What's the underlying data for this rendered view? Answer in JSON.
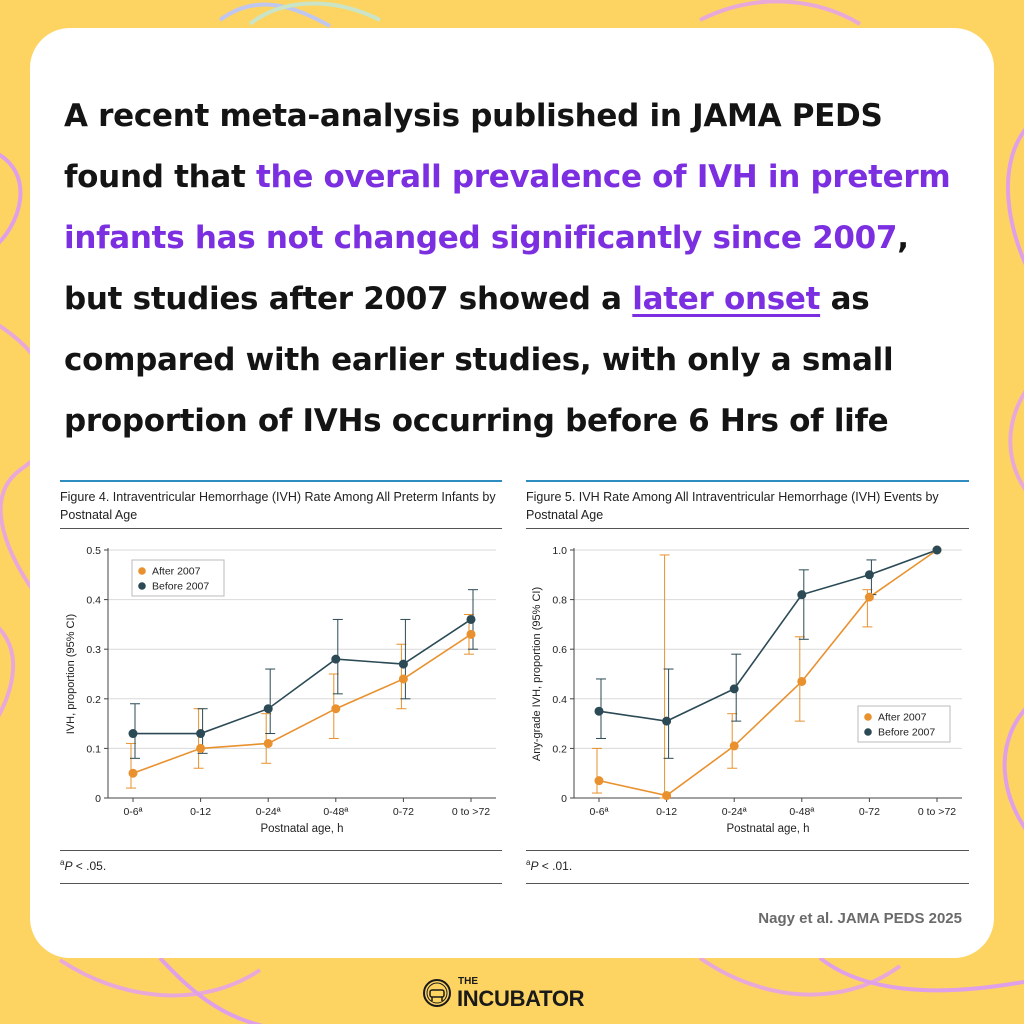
{
  "headline": {
    "part1": "A recent meta-analysis published in JAMA PEDS found that ",
    "highlight": "the overall prevalence of IVH in preterm infants has not changed significantly since 2007",
    "part2": ", but studies after 2007 showed a ",
    "underline": "later onset",
    "part3": " as compared with earlier studies, with only a small proportion of IVHs occurring before 6 Hrs of life"
  },
  "citation": "Nagy et al. JAMA PEDS 2025",
  "logo": {
    "the": "THE",
    "name": "INCUBATOR",
    "icon": "incubator-icon"
  },
  "colors": {
    "background": "#FDD462",
    "accent": "#7B2FE0",
    "after": "#E8912E",
    "before": "#2B4A55",
    "rule": "#2E8CC0"
  },
  "chart_data": [
    {
      "type": "line",
      "title": "Figure 4. Intraventricular Hemorrhage (IVH) Rate Among All Preterm Infants by Postnatal Age",
      "xlabel": "Postnatal age, h",
      "ylabel": "IVH, proportion (95% CI)",
      "categories": [
        "0-6ª",
        "0-12",
        "0-24ª",
        "0-48ª",
        "0-72",
        "0 to >72"
      ],
      "ylim": [
        0,
        0.5
      ],
      "yticks": [
        "0",
        "0.1",
        "0.2",
        "0.3",
        "0.4",
        "0.5"
      ],
      "grid": true,
      "legend_position": "top-left",
      "series": [
        {
          "name": "After 2007",
          "color": "#E8912E",
          "values": [
            0.05,
            0.1,
            0.11,
            0.18,
            0.24,
            0.33
          ],
          "ci_low": [
            0.02,
            0.06,
            0.07,
            0.12,
            0.18,
            0.29
          ],
          "ci_high": [
            0.11,
            0.18,
            0.17,
            0.25,
            0.31,
            0.37
          ]
        },
        {
          "name": "Before 2007",
          "color": "#2B4A55",
          "values": [
            0.13,
            0.13,
            0.18,
            0.28,
            0.27,
            0.36
          ],
          "ci_low": [
            0.08,
            0.09,
            0.13,
            0.21,
            0.2,
            0.3
          ],
          "ci_high": [
            0.19,
            0.18,
            0.26,
            0.36,
            0.36,
            0.42
          ]
        }
      ],
      "footnote": {
        "sup": "a",
        "italic": "P",
        "text": " < .05."
      }
    },
    {
      "type": "line",
      "title": "Figure 5. IVH Rate Among All Intraventricular Hemorrhage (IVH) Events by Postnatal Age",
      "xlabel": "Postnatal age, h",
      "ylabel": "Any-grade IVH, proportion (95% CI)",
      "categories": [
        "0-6ª",
        "0-12",
        "0-24ª",
        "0-48ª",
        "0-72",
        "0 to >72"
      ],
      "ylim": [
        0,
        1.0
      ],
      "yticks": [
        "0",
        "0.2",
        "0.4",
        "0.6",
        "0.8",
        "1.0"
      ],
      "grid": true,
      "legend_position": "bottom-right",
      "series": [
        {
          "name": "After 2007",
          "color": "#E8912E",
          "values": [
            0.07,
            0.01,
            0.21,
            0.47,
            0.81,
            1.0
          ],
          "ci_low": [
            0.02,
            0.0,
            0.12,
            0.31,
            0.69,
            1.0
          ],
          "ci_high": [
            0.2,
            0.98,
            0.34,
            0.65,
            0.84,
            1.0
          ]
        },
        {
          "name": "Before 2007",
          "color": "#2B4A55",
          "values": [
            0.35,
            0.31,
            0.44,
            0.82,
            0.9,
            1.0
          ],
          "ci_low": [
            0.24,
            0.16,
            0.31,
            0.64,
            0.82,
            1.0
          ],
          "ci_high": [
            0.48,
            0.52,
            0.58,
            0.92,
            0.96,
            1.0
          ]
        }
      ],
      "footnote": {
        "sup": "a",
        "italic": "P",
        "text": " < .01."
      }
    }
  ]
}
